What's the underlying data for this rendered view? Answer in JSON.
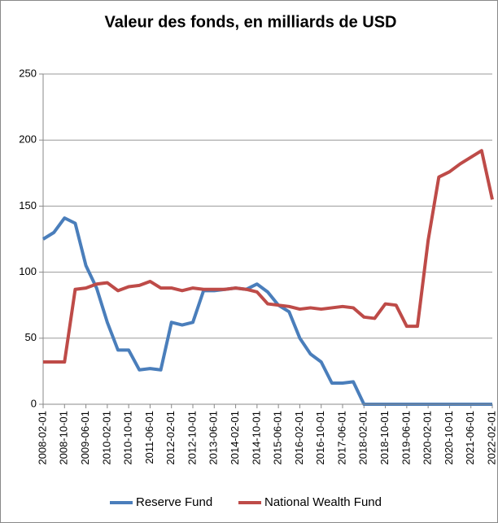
{
  "chart_data": {
    "type": "line",
    "title": "Valeur des fonds, en milliards de USD",
    "x": [
      "2008-02-01",
      "2008-06-01",
      "2008-10-01",
      "2009-02-01",
      "2009-06-01",
      "2009-10-01",
      "2010-02-01",
      "2010-06-01",
      "2010-10-01",
      "2011-02-01",
      "2011-06-01",
      "2011-10-01",
      "2012-02-01",
      "2012-06-01",
      "2012-10-01",
      "2013-02-01",
      "2013-06-01",
      "2013-10-01",
      "2014-02-01",
      "2014-06-01",
      "2014-10-01",
      "2015-02-01",
      "2015-06-01",
      "2015-10-01",
      "2016-02-01",
      "2016-06-01",
      "2016-10-01",
      "2017-02-01",
      "2017-06-01",
      "2017-10-01",
      "2018-02-01",
      "2018-06-01",
      "2018-10-01",
      "2019-02-01",
      "2019-06-01",
      "2019-10-01",
      "2020-02-01",
      "2020-06-01",
      "2020-10-01",
      "2021-02-01",
      "2021-06-01",
      "2021-10-01",
      "2022-02-01"
    ],
    "series": [
      {
        "name": "Reserve Fund",
        "color": "#4a7ebb",
        "values": [
          125,
          130,
          141,
          137,
          105,
          88,
          62,
          41,
          41,
          26,
          27,
          26,
          62,
          60,
          62,
          86,
          86,
          87,
          88,
          87,
          91,
          85,
          75,
          70,
          50,
          38,
          32,
          16,
          16,
          17,
          0,
          0,
          0,
          0,
          0,
          0,
          0,
          0,
          0,
          0,
          0,
          0,
          0
        ]
      },
      {
        "name": "National Wealth Fund",
        "color": "#be4b48",
        "values": [
          32,
          32,
          32,
          87,
          88,
          91,
          92,
          86,
          89,
          90,
          93,
          88,
          88,
          86,
          88,
          87,
          87,
          87,
          88,
          87,
          85,
          76,
          75,
          74,
          72,
          73,
          72,
          73,
          74,
          73,
          66,
          65,
          76,
          75,
          59,
          59,
          124,
          172,
          176,
          182,
          187,
          192,
          155
        ]
      }
    ],
    "xticks": [
      "2008-02-01",
      "2008-10-01",
      "2009-06-01",
      "2010-02-01",
      "2010-10-01",
      "2011-06-01",
      "2012-02-01",
      "2012-10-01",
      "2013-06-01",
      "2014-02-01",
      "2014-10-01",
      "2015-06-01",
      "2016-02-01",
      "2016-10-01",
      "2017-06-01",
      "2018-02-01",
      "2018-10-01",
      "2019-06-01",
      "2020-02-01",
      "2020-10-01",
      "2021-06-01",
      "2022-02-01"
    ],
    "ylim": [
      0,
      250
    ],
    "yticks": [
      0,
      50,
      100,
      150,
      200,
      250
    ],
    "grid": true,
    "legend": "bottom"
  }
}
